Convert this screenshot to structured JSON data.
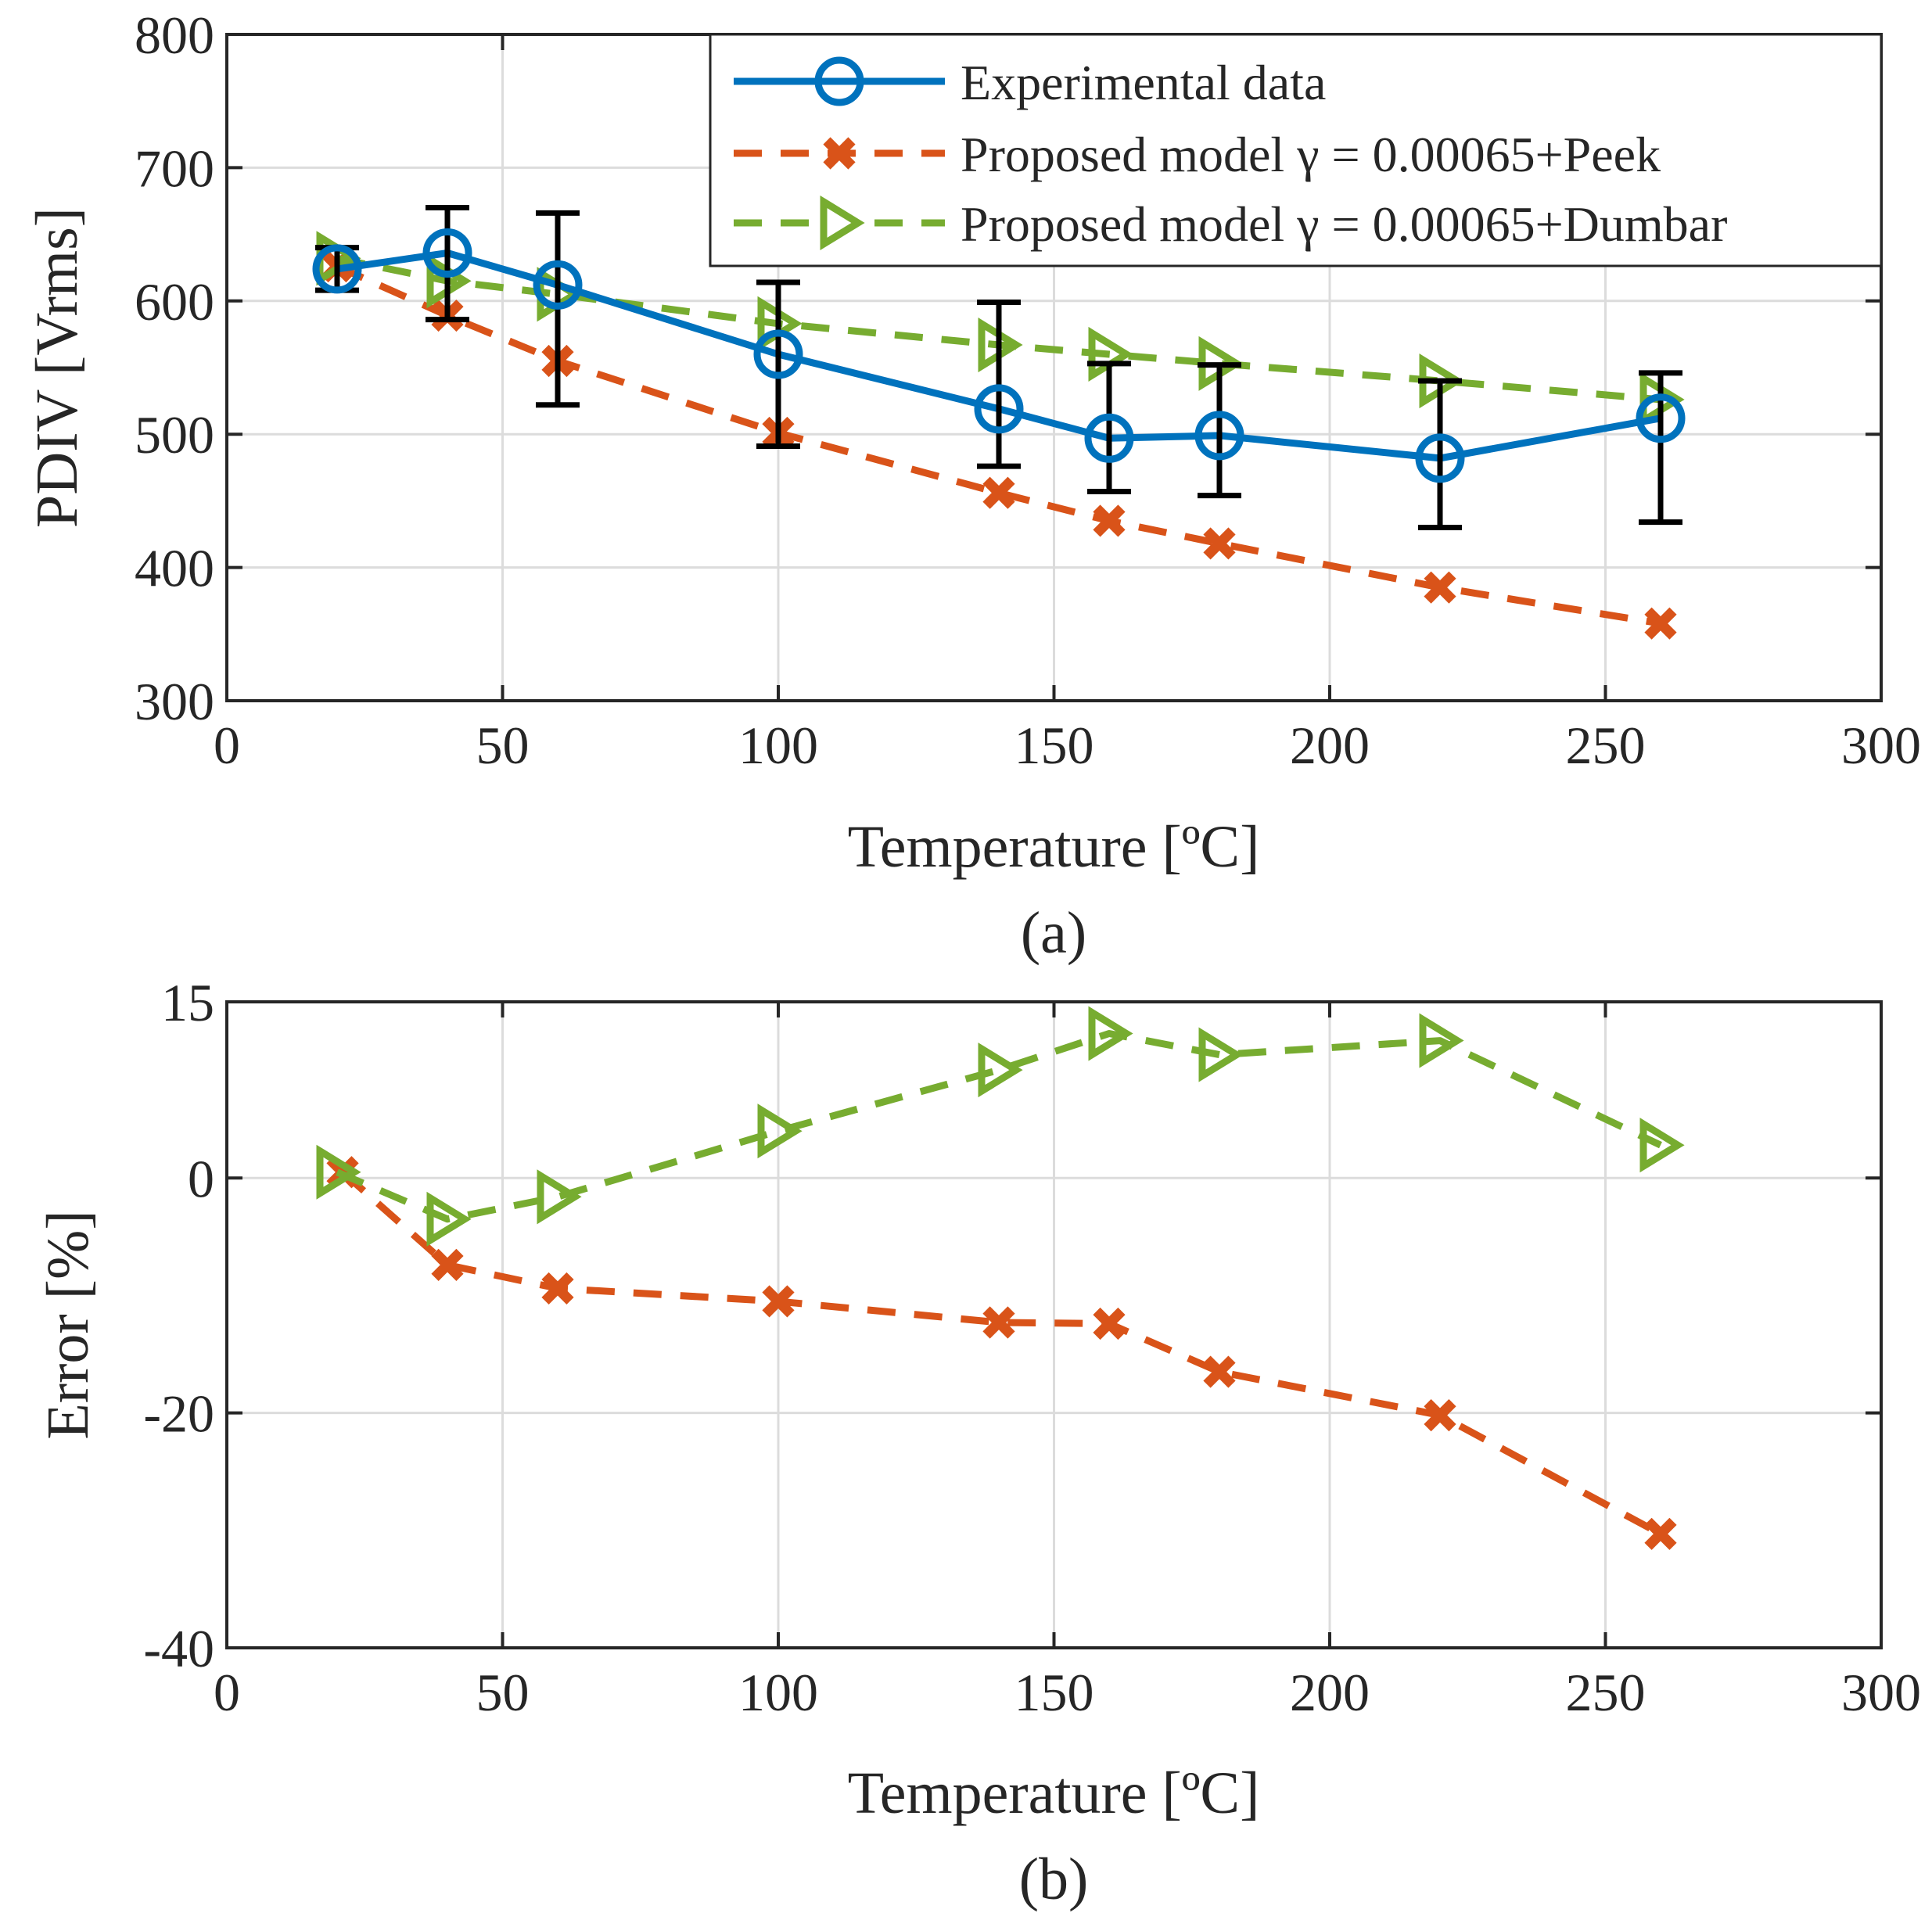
{
  "colors": {
    "experimental": "#0072BD",
    "peek": "#D95319",
    "dumbar": "#77AC30",
    "errorbar": "#000000",
    "axis": "#262626",
    "grid": "#dcdcdc"
  },
  "chart_data": [
    {
      "type": "line",
      "caption": "(a)",
      "xlabel": "Temperature [ºC]",
      "ylabel": "PDIV [Vrms]",
      "xlim": [
        0,
        300
      ],
      "ylim": [
        300,
        800
      ],
      "xticks": [
        0,
        50,
        100,
        150,
        200,
        250,
        300
      ],
      "yticks": [
        300,
        400,
        500,
        600,
        700,
        800
      ],
      "xtick_labels": [
        "0",
        "50",
        "100",
        "150",
        "200",
        "250",
        "300"
      ],
      "ytick_labels": [
        "300",
        "400",
        "500",
        "600",
        "700",
        "800"
      ],
      "grid": true,
      "legend_location": "top-right",
      "series": [
        {
          "name": "Experimental data",
          "legend_label": "Experimental data",
          "marker": "circle",
          "line": "solid",
          "color_key": "experimental",
          "x": [
            20,
            40,
            60,
            100,
            140,
            160,
            180,
            220,
            260
          ],
          "y": [
            624,
            636,
            612,
            560,
            519,
            497,
            499,
            482,
            512
          ],
          "error_low": [
            608,
            586,
            522,
            491,
            476,
            457,
            454,
            430,
            434
          ],
          "error_high": [
            640,
            670,
            666,
            614,
            599,
            553,
            552,
            540,
            546
          ]
        },
        {
          "name": "Proposed model γ = 0.00065+Peek",
          "legend_label": "Proposed model γ = 0.00065+Peek",
          "marker": "x",
          "line": "dashed",
          "color_key": "peek",
          "x": [
            20,
            40,
            60,
            100,
            140,
            160,
            180,
            220,
            260
          ],
          "y": [
            626,
            589,
            555,
            501,
            456,
            435,
            418,
            385,
            358
          ]
        },
        {
          "name": "Proposed model γ = 0.00065+Dumbar",
          "legend_label": "Proposed model γ = 0.00065+Dumbar",
          "marker": "triangle-right",
          "line": "dashed",
          "color_key": "dumbar",
          "x": [
            20,
            40,
            60,
            100,
            140,
            160,
            180,
            220,
            260
          ],
          "y": [
            632,
            615,
            605,
            583,
            567,
            560,
            553,
            540,
            526
          ]
        }
      ]
    },
    {
      "type": "line",
      "caption": "(b)",
      "xlabel": "Temperature [ºC]",
      "ylabel": "Error [%]",
      "xlim": [
        0,
        300
      ],
      "ylim": [
        -40,
        15
      ],
      "xticks": [
        0,
        50,
        100,
        150,
        200,
        250,
        300
      ],
      "yticks": [
        -40,
        -20,
        0,
        15
      ],
      "xtick_labels": [
        "0",
        "50",
        "100",
        "150",
        "200",
        "250",
        "300"
      ],
      "ytick_labels": [
        "-40",
        "-20",
        "0",
        "15"
      ],
      "grid": true,
      "series": [
        {
          "name": "Proposed model γ = 0.00065+Peek",
          "marker": "x",
          "line": "dashed",
          "color_key": "peek",
          "x": [
            21,
            40,
            60,
            100,
            140,
            160,
            180,
            220,
            260
          ],
          "y": [
            0.5,
            -7.4,
            -9.4,
            -10.5,
            -12.3,
            -12.4,
            -16.5,
            -20.2,
            -30.3
          ]
        },
        {
          "name": "Proposed model γ = 0.00065+Dumbar",
          "marker": "triangle-right",
          "line": "dashed",
          "color_key": "dumbar",
          "x": [
            20,
            40,
            60,
            100,
            140,
            160,
            180,
            220,
            260
          ],
          "y": [
            0.5,
            -3.5,
            -1.6,
            4.0,
            9.2,
            12.3,
            10.5,
            11.7,
            2.8
          ]
        }
      ]
    }
  ]
}
